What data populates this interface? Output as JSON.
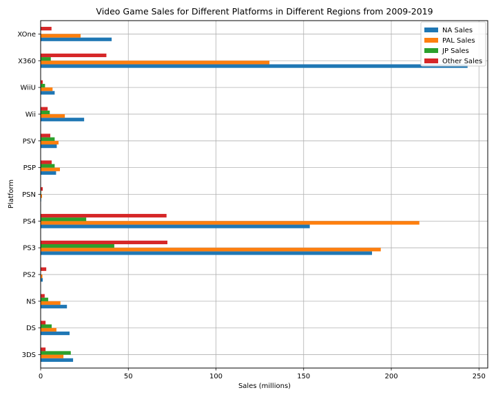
{
  "chart_data": {
    "type": "bar",
    "orientation": "horizontal",
    "title": "Video Game Sales for Different Platforms in Different Regions from 2009-2019",
    "xlabel": "Sales (millions)",
    "ylabel": "Platform",
    "xlim": [
      0,
      255
    ],
    "xticks": [
      0,
      50,
      100,
      150,
      200,
      250
    ],
    "grid": true,
    "legend_position": "top-right",
    "categories": [
      "3DS",
      "DS",
      "NS",
      "PS2",
      "PS3",
      "PS4",
      "PSN",
      "PSP",
      "PSV",
      "Wii",
      "WiiU",
      "X360",
      "XOne"
    ],
    "series": [
      {
        "name": "NA Sales",
        "color": "#1f77b4",
        "values": [
          18.5,
          16.5,
          15.0,
          1.2,
          189.0,
          153.5,
          0.3,
          8.8,
          9.2,
          24.8,
          8.0,
          243.5,
          40.5
        ]
      },
      {
        "name": "PAL Sales",
        "color": "#ff7f0e",
        "values": [
          13.0,
          9.0,
          11.3,
          1.0,
          194.0,
          216.0,
          0.8,
          11.0,
          10.2,
          13.8,
          6.8,
          130.5,
          22.8
        ]
      },
      {
        "name": "JP Sales",
        "color": "#2ca02c",
        "values": [
          17.2,
          6.3,
          4.3,
          0.2,
          42.0,
          26.0,
          0.3,
          8.0,
          8.0,
          5.2,
          2.5,
          5.8,
          0.2
        ]
      },
      {
        "name": "Other Sales",
        "color": "#d62728",
        "values": [
          2.8,
          2.8,
          2.3,
          3.2,
          72.3,
          71.8,
          1.2,
          6.3,
          5.5,
          4.0,
          1.2,
          37.5,
          6.2
        ]
      }
    ]
  }
}
